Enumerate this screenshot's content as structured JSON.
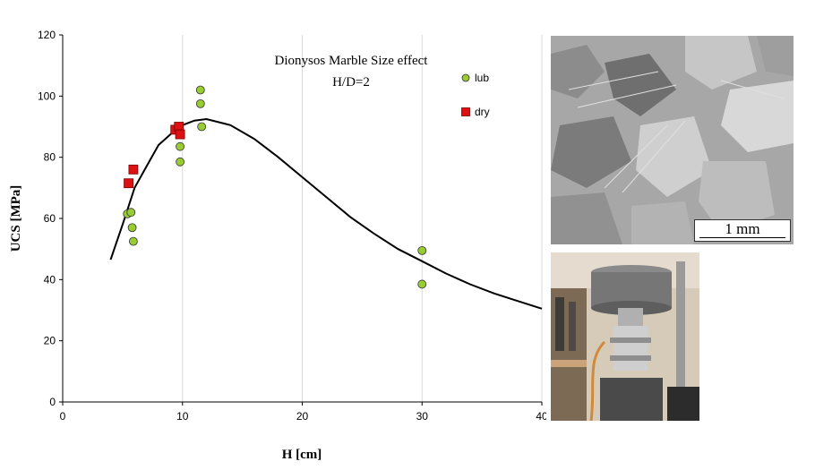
{
  "chart_data": {
    "type": "scatter",
    "title": "Dionysos Marble Size effect",
    "subtitle": "H/D=2",
    "xlabel": "H [cm]",
    "ylabel": "UCS [MPa]",
    "xlim": [
      0,
      40
    ],
    "ylim": [
      0,
      120
    ],
    "xticks": [
      0,
      10,
      20,
      30,
      40
    ],
    "yticks": [
      0,
      20,
      40,
      60,
      80,
      100,
      120
    ],
    "grid": "vertical",
    "legend": "top-right",
    "series": [
      {
        "name": "lub",
        "marker": "circle",
        "color": "#99cc33",
        "points": [
          {
            "x": 5.4,
            "y": 61.5
          },
          {
            "x": 5.7,
            "y": 62
          },
          {
            "x": 5.8,
            "y": 57
          },
          {
            "x": 5.9,
            "y": 52.5
          },
          {
            "x": 9.8,
            "y": 83.5
          },
          {
            "x": 9.8,
            "y": 78.5
          },
          {
            "x": 11.5,
            "y": 102
          },
          {
            "x": 11.5,
            "y": 97.5
          },
          {
            "x": 11.6,
            "y": 90
          },
          {
            "x": 30,
            "y": 49.5
          },
          {
            "x": 30,
            "y": 38.5
          }
        ]
      },
      {
        "name": "dry",
        "marker": "square",
        "color": "#dd1111",
        "points": [
          {
            "x": 5.5,
            "y": 71.5
          },
          {
            "x": 5.9,
            "y": 76
          },
          {
            "x": 9.4,
            "y": 89
          },
          {
            "x": 9.7,
            "y": 90
          },
          {
            "x": 9.8,
            "y": 87.5
          }
        ]
      },
      {
        "name": "",
        "marker": "line",
        "color": "#000000",
        "points": [
          {
            "x": 4,
            "y": 46.5
          },
          {
            "x": 5,
            "y": 58
          },
          {
            "x": 6,
            "y": 70
          },
          {
            "x": 7,
            "y": 77
          },
          {
            "x": 8,
            "y": 84
          },
          {
            "x": 9,
            "y": 87.5
          },
          {
            "x": 10,
            "y": 90.5
          },
          {
            "x": 11,
            "y": 92
          },
          {
            "x": 12,
            "y": 92.5
          },
          {
            "x": 14,
            "y": 90.5
          },
          {
            "x": 16,
            "y": 86
          },
          {
            "x": 18,
            "y": 80
          },
          {
            "x": 20,
            "y": 73.5
          },
          {
            "x": 22,
            "y": 67
          },
          {
            "x": 24,
            "y": 60.5
          },
          {
            "x": 26,
            "y": 55
          },
          {
            "x": 28,
            "y": 50
          },
          {
            "x": 30,
            "y": 46
          },
          {
            "x": 32,
            "y": 42
          },
          {
            "x": 34,
            "y": 38.5
          },
          {
            "x": 36,
            "y": 35.5
          },
          {
            "x": 38,
            "y": 33
          },
          {
            "x": 40,
            "y": 30.5
          }
        ]
      }
    ]
  },
  "images": {
    "micrograph": {
      "scale_label": "1 mm"
    },
    "rig_photo": {}
  }
}
